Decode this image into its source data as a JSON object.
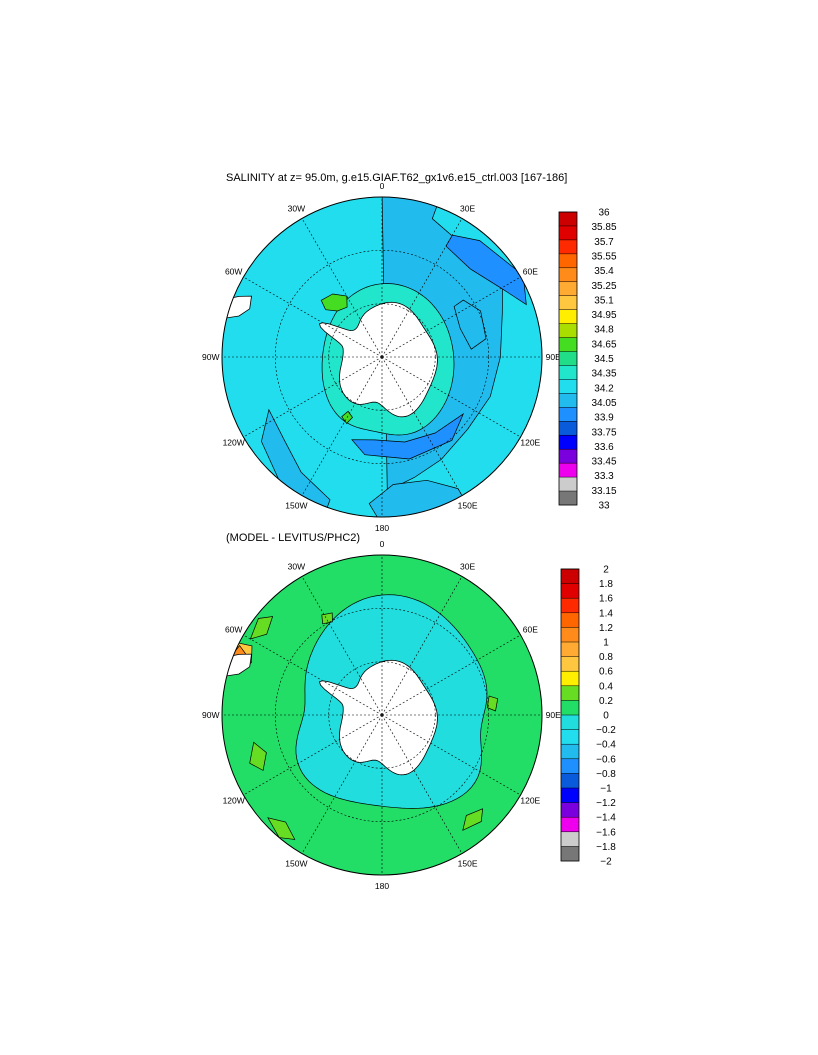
{
  "chart_data": [
    {
      "type": "heatmap",
      "projection": "south polar stereographic",
      "title": "SALINITY at z=  95.0m, g.e15.GIAF.T62_gx1v6.e15_ctrl.003 [167-186]",
      "lon_labels": [
        "0",
        "30E",
        "60E",
        "90E",
        "120E",
        "150E",
        "180",
        "150W",
        "120W",
        "90W",
        "60W",
        "30W"
      ],
      "grid": true,
      "contour_levels": [
        36,
        35.85,
        35.7,
        35.55,
        35.4,
        35.25,
        35.1,
        34.95,
        34.8,
        34.65,
        34.5,
        34.35,
        34.2,
        34.05,
        33.9,
        33.75,
        33.6,
        33.45,
        33.3,
        33.15,
        33
      ],
      "colorbar_labels": [
        "36",
        "35.85",
        "35.7",
        "35.55",
        "35.4",
        "35.25",
        "35.1",
        "34.95",
        "34.8",
        "34.65",
        "34.5",
        "34.35",
        "34.2",
        "34.05",
        "33.9",
        "33.75",
        "33.6",
        "33.45",
        "33.3",
        "33.15",
        "33"
      ],
      "colors": [
        "#cc0000",
        "#e00000",
        "#ff2a00",
        "#ff6600",
        "#ff8c1a",
        "#ffaa33",
        "#ffc640",
        "#ffee00",
        "#aadd00",
        "#44dd22",
        "#22dd88",
        "#22e6cc",
        "#22ddee",
        "#22bbee",
        "#1e90ff",
        "#0a5adc",
        "#0000ff",
        "#7a00dd",
        "#ee00ee",
        "#cccccc",
        "#777777"
      ],
      "dominant_values": {
        "open_ocean": "34.05–34.2",
        "near_coast": "34.2–34.35",
        "indian_sector": "33.9–34.05",
        "weddell_pocket": "34.5–34.65"
      }
    },
    {
      "type": "heatmap",
      "projection": "south polar stereographic",
      "title": "(MODEL - LEVITUS/PHC2)",
      "lon_labels": [
        "0",
        "30E",
        "60E",
        "90E",
        "120E",
        "150E",
        "180",
        "150W",
        "120W",
        "90W",
        "60W",
        "30W"
      ],
      "grid": true,
      "contour_levels": [
        2,
        1.8,
        1.6,
        1.4,
        1.2,
        1,
        0.8,
        0.6,
        0.4,
        0.2,
        0,
        -0.2,
        -0.4,
        -0.6,
        -0.8,
        -1,
        -1.2,
        -1.4,
        -1.6,
        -1.8,
        -2
      ],
      "colorbar_labels": [
        "2",
        "1.8",
        "1.6",
        "1.4",
        "1.2",
        "1",
        "0.8",
        "0.6",
        "0.4",
        "0.2",
        "0",
        "−0.2",
        "−0.4",
        "−0.6",
        "−0.8",
        "−1",
        "−1.2",
        "−1.4",
        "−1.6",
        "−1.8",
        "−2"
      ],
      "colors": [
        "#cc0000",
        "#e00000",
        "#ff2a00",
        "#ff6600",
        "#ff8c1a",
        "#ffaa33",
        "#ffc640",
        "#ffee00",
        "#66dd22",
        "#22dd66",
        "#22dddd",
        "#22ddee",
        "#22bbee",
        "#1e90ff",
        "#0a5adc",
        "#0000ff",
        "#7a00dd",
        "#ee00ee",
        "#cccccc",
        "#777777"
      ],
      "dominant_values": {
        "open_ocean": "0–0.2",
        "inner_ring": "-0.2–0"
      }
    }
  ]
}
